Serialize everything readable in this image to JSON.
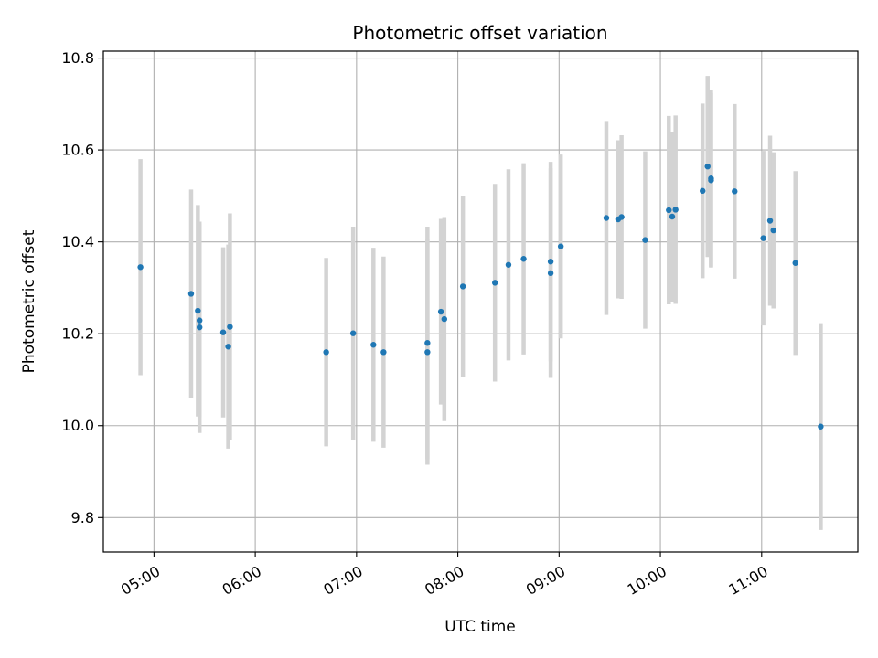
{
  "chart_data": {
    "type": "scatter",
    "title": "Photometric offset variation",
    "xlabel": "UTC time",
    "ylabel": "Photometric offset",
    "x_tick_labels": [
      "05:00",
      "06:00",
      "07:00",
      "08:00",
      "09:00",
      "10:00",
      "11:00"
    ],
    "y_tick_labels": [
      "9.8",
      "10.0",
      "10.2",
      "10.4",
      "10.6",
      "10.8"
    ],
    "ylim": [
      9.725,
      10.815
    ],
    "xlim": [
      "04:30",
      "11:57"
    ],
    "grid": true,
    "point_color": "#1f77b4",
    "errorbar_color": "#d3d3d3",
    "series": [
      {
        "points": [
          {
            "x": "04:52",
            "y": 10.345,
            "yerr": 0.235
          },
          {
            "x": "05:22",
            "y": 10.287,
            "yerr": 0.227
          },
          {
            "x": "05:26",
            "y": 10.25,
            "yerr": 0.23
          },
          {
            "x": "05:27",
            "y": 10.229,
            "yerr": 0.21
          },
          {
            "x": "05:27",
            "y": 10.214,
            "yerr": 0.23
          },
          {
            "x": "05:41",
            "y": 10.203,
            "yerr": 0.185
          },
          {
            "x": "05:44",
            "y": 10.172,
            "yerr": 0.222
          },
          {
            "x": "05:45",
            "y": 10.215,
            "yerr": 0.247
          },
          {
            "x": "06:42",
            "y": 10.16,
            "yerr": 0.205
          },
          {
            "x": "06:58",
            "y": 10.201,
            "yerr": 0.232
          },
          {
            "x": "07:10",
            "y": 10.176,
            "yerr": 0.211
          },
          {
            "x": "07:16",
            "y": 10.16,
            "yerr": 0.208
          },
          {
            "x": "07:42",
            "y": 10.18,
            "yerr": 0.253
          },
          {
            "x": "07:42",
            "y": 10.16,
            "yerr": 0.245
          },
          {
            "x": "07:50",
            "y": 10.248,
            "yerr": 0.202
          },
          {
            "x": "07:52",
            "y": 10.232,
            "yerr": 0.222
          },
          {
            "x": "08:03",
            "y": 10.303,
            "yerr": 0.197
          },
          {
            "x": "08:22",
            "y": 10.311,
            "yerr": 0.215
          },
          {
            "x": "08:30",
            "y": 10.35,
            "yerr": 0.208
          },
          {
            "x": "08:39",
            "y": 10.363,
            "yerr": 0.208
          },
          {
            "x": "08:55",
            "y": 10.332,
            "yerr": 0.228
          },
          {
            "x": "08:55",
            "y": 10.357,
            "yerr": 0.217
          },
          {
            "x": "09:01",
            "y": 10.39,
            "yerr": 0.2
          },
          {
            "x": "09:28",
            "y": 10.452,
            "yerr": 0.211
          },
          {
            "x": "09:35",
            "y": 10.449,
            "yerr": 0.172
          },
          {
            "x": "09:37",
            "y": 10.454,
            "yerr": 0.178
          },
          {
            "x": "09:51",
            "y": 10.404,
            "yerr": 0.193
          },
          {
            "x": "10:05",
            "y": 10.469,
            "yerr": 0.205
          },
          {
            "x": "10:07",
            "y": 10.455,
            "yerr": 0.185
          },
          {
            "x": "10:09",
            "y": 10.47,
            "yerr": 0.205
          },
          {
            "x": "10:25",
            "y": 10.511,
            "yerr": 0.19
          },
          {
            "x": "10:28",
            "y": 10.564,
            "yerr": 0.197
          },
          {
            "x": "10:30",
            "y": 10.538,
            "yerr": 0.192
          },
          {
            "x": "10:30",
            "y": 10.534,
            "yerr": 0.19
          },
          {
            "x": "10:44",
            "y": 10.51,
            "yerr": 0.19
          },
          {
            "x": "11:01",
            "y": 10.408,
            "yerr": 0.19
          },
          {
            "x": "11:05",
            "y": 10.446,
            "yerr": 0.185
          },
          {
            "x": "11:07",
            "y": 10.425,
            "yerr": 0.17
          },
          {
            "x": "11:20",
            "y": 10.354,
            "yerr": 0.2
          },
          {
            "x": "11:35",
            "y": 9.998,
            "yerr": 0.225
          }
        ]
      }
    ]
  }
}
